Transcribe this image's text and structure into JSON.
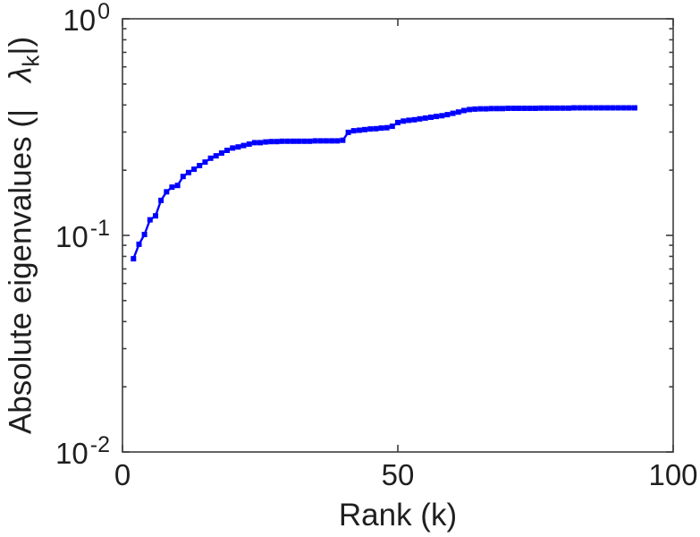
{
  "figure": {
    "background_color": "#ffffff",
    "axis_color": "#3d3d3d",
    "text_color": "#1f1f1f"
  },
  "labels": {
    "x_axis": "Rank (k)",
    "y_axis_prefix": "Absolute eigenvalues (|",
    "y_axis_lambda": "λ",
    "y_axis_lambda_sub": "k",
    "y_axis_suffix": "|)"
  },
  "chart_data": {
    "type": "line",
    "title": "",
    "xlabel": "Rank (k)",
    "ylabel": "Absolute eigenvalues (| λ_k |)",
    "marker": "square",
    "series_color": "#0000ff",
    "grid": false,
    "legend": null,
    "x_scale": "linear",
    "y_scale": "log",
    "xlim": [
      0,
      100
    ],
    "ylim": [
      0.01,
      1
    ],
    "x_ticks": [
      {
        "value": 0,
        "label": "0"
      },
      {
        "value": 50,
        "label": "50"
      },
      {
        "value": 100,
        "label": "100"
      }
    ],
    "y_major_ticks": [
      {
        "value": 1,
        "mantissa": "10",
        "exponent": "0"
      },
      {
        "value": 0.1,
        "mantissa": "10",
        "exponent": "-1"
      },
      {
        "value": 0.01,
        "mantissa": "10",
        "exponent": "-2"
      }
    ],
    "y_minor_tick_decades": [
      -2,
      -1
    ],
    "x": [
      2,
      3,
      4,
      5,
      6,
      7,
      8,
      9,
      10,
      11,
      12,
      13,
      14,
      15,
      16,
      17,
      18,
      19,
      20,
      21,
      22,
      23,
      24,
      25,
      26,
      27,
      28,
      29,
      30,
      31,
      32,
      33,
      34,
      35,
      36,
      37,
      38,
      39,
      40,
      41,
      42,
      43,
      44,
      45,
      46,
      47,
      48,
      49,
      50,
      51,
      52,
      53,
      54,
      55,
      56,
      57,
      58,
      59,
      60,
      61,
      62,
      63,
      64,
      65,
      66,
      67,
      68,
      69,
      70,
      71,
      72,
      73,
      74,
      75,
      76,
      77,
      78,
      79,
      80,
      81,
      82,
      83,
      84,
      85,
      86,
      87,
      88,
      89,
      90,
      91,
      92,
      93
    ],
    "y": [
      0.078,
      0.091,
      0.101,
      0.118,
      0.123,
      0.145,
      0.159,
      0.167,
      0.17,
      0.187,
      0.195,
      0.202,
      0.21,
      0.218,
      0.227,
      0.233,
      0.24,
      0.247,
      0.253,
      0.256,
      0.26,
      0.264,
      0.268,
      0.268,
      0.27,
      0.271,
      0.271,
      0.272,
      0.272,
      0.272,
      0.272,
      0.272,
      0.272,
      0.273,
      0.273,
      0.273,
      0.273,
      0.273,
      0.275,
      0.299,
      0.304,
      0.306,
      0.308,
      0.31,
      0.311,
      0.313,
      0.314,
      0.319,
      0.332,
      0.337,
      0.34,
      0.342,
      0.345,
      0.348,
      0.351,
      0.354,
      0.357,
      0.361,
      0.366,
      0.371,
      0.377,
      0.381,
      0.383,
      0.384,
      0.384,
      0.385,
      0.385,
      0.385,
      0.386,
      0.386,
      0.386,
      0.386,
      0.386,
      0.386,
      0.387,
      0.387,
      0.387,
      0.387,
      0.387,
      0.387,
      0.388,
      0.388,
      0.388,
      0.388,
      0.388,
      0.388,
      0.388,
      0.388,
      0.388,
      0.388,
      0.388,
      0.388
    ]
  }
}
